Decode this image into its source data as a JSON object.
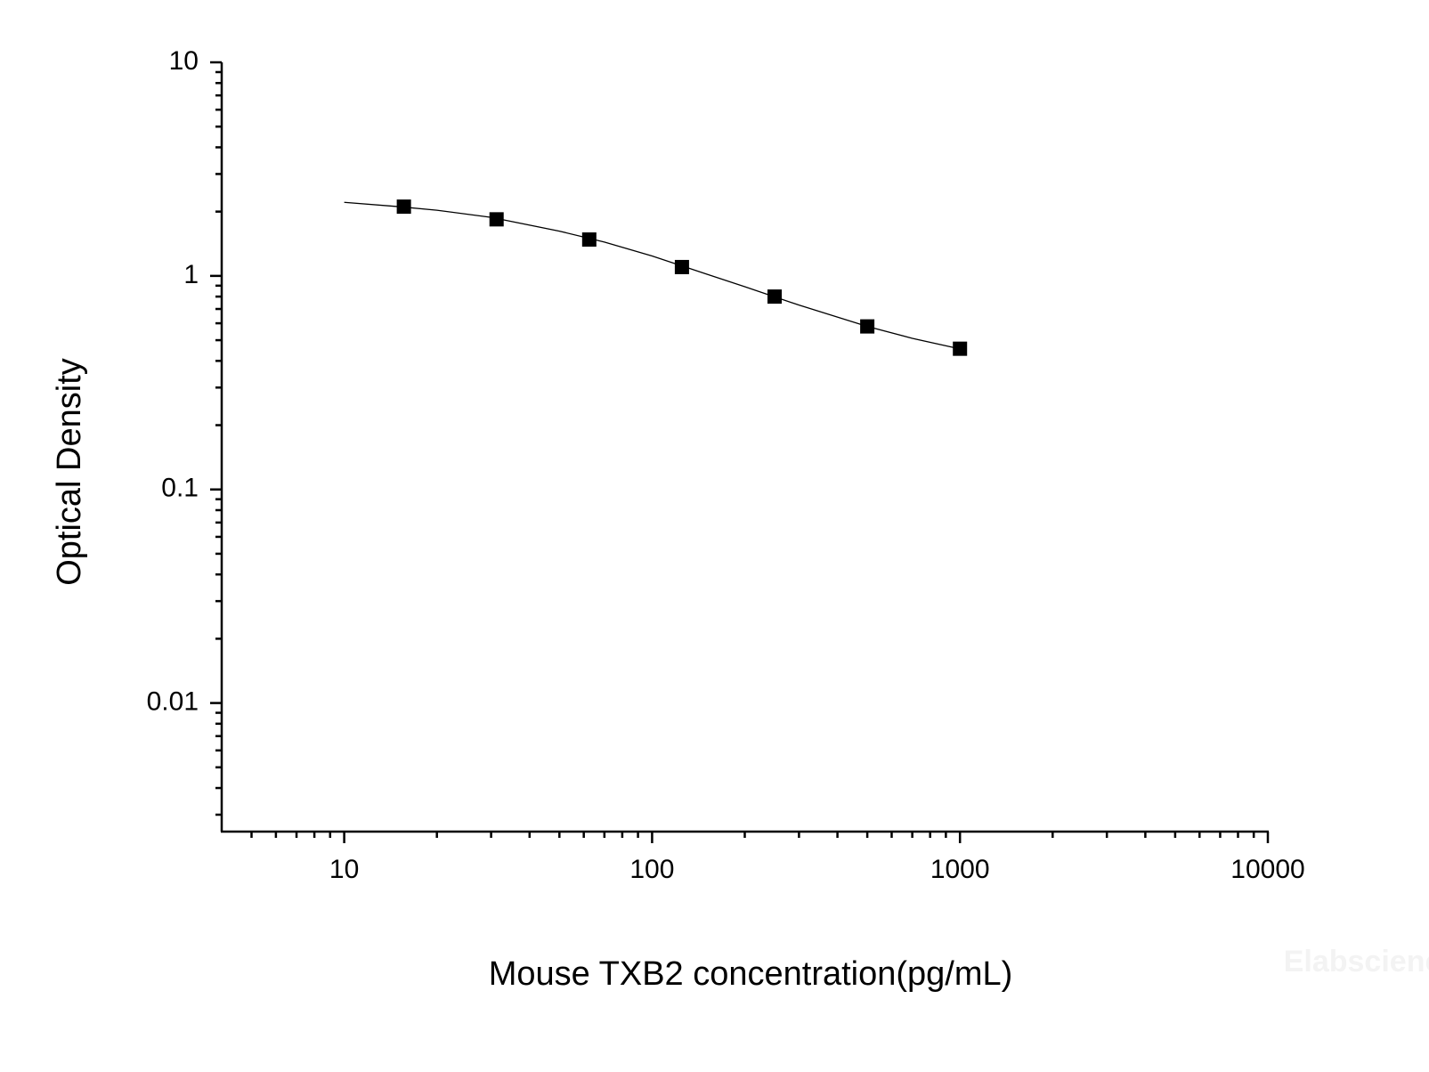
{
  "chart_data": {
    "type": "scatter",
    "xlabel": "Mouse TXB2 concentration(pg/mL)",
    "ylabel": "Optical Density",
    "watermark": "Elabscience",
    "xscale": "log",
    "yscale": "log",
    "xlim": [
      4,
      10000
    ],
    "ylim": [
      0.0025,
      10
    ],
    "xticks": [
      10,
      100,
      1000,
      10000
    ],
    "yticks": [
      0.01,
      0.1,
      1,
      10
    ],
    "xminorticks": [
      5,
      6,
      7,
      8,
      9,
      20,
      30,
      40,
      50,
      60,
      70,
      80,
      90,
      200,
      300,
      400,
      500,
      600,
      700,
      800,
      900,
      2000,
      3000,
      4000,
      5000,
      6000,
      7000,
      8000,
      9000
    ],
    "yminorticks": [
      0.003,
      0.004,
      0.005,
      0.006,
      0.007,
      0.008,
      0.009,
      0.02,
      0.03,
      0.04,
      0.05,
      0.06,
      0.07,
      0.08,
      0.09,
      0.2,
      0.3,
      0.4,
      0.5,
      0.6,
      0.7,
      0.8,
      0.9,
      2,
      3,
      4,
      5,
      6,
      7,
      8,
      9
    ],
    "series": [
      {
        "style": "markers",
        "color": "#000000",
        "x": [
          15.625,
          31.25,
          62.5,
          125,
          250,
          500,
          1000
        ],
        "values": [
          2.11,
          1.84,
          1.48,
          1.1,
          0.8,
          0.58,
          0.456
        ]
      },
      {
        "style": "line",
        "color": "#000000",
        "x": [
          10,
          15,
          20,
          30,
          50,
          70,
          100,
          150,
          200,
          300,
          500,
          700,
          1000
        ],
        "values": [
          2.21,
          2.11,
          2.03,
          1.88,
          1.62,
          1.44,
          1.24,
          1.02,
          0.89,
          0.73,
          0.58,
          0.51,
          0.455
        ]
      }
    ]
  }
}
